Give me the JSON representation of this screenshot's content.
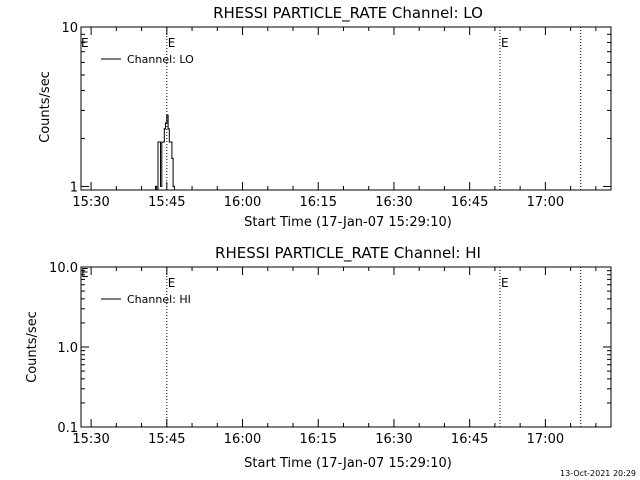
{
  "timestamp": "13-Oct-2021 20:29",
  "chart_data": [
    {
      "type": "line",
      "title": "RHESSI PARTICLE_RATE Channel: LO",
      "xlabel": "Start Time (17-Jan-07 15:29:10)",
      "ylabel": "Counts/sec",
      "x_unit": "time of day",
      "xlim": [
        "15:28",
        "17:13"
      ],
      "xticks": [
        "15:30",
        "15:45",
        "16:00",
        "16:15",
        "16:30",
        "16:45",
        "17:00"
      ],
      "ylim": [
        0.95,
        10
      ],
      "y_scale": "log",
      "yticks": [
        "1",
        "10"
      ],
      "grid": false,
      "legend_position": "top-left",
      "series": [
        {
          "name": "Channel: LO",
          "color": "#000000",
          "style": "histogram",
          "x": [
            "15:42:00",
            "15:42:45",
            "15:43:00",
            "15:43:15",
            "15:43:30",
            "15:43:45",
            "15:44:00",
            "15:44:15",
            "15:44:30",
            "15:44:45",
            "15:45:00",
            "15:45:15",
            "15:45:30",
            "15:45:45",
            "15:46:00",
            "15:46:15",
            "15:46:30",
            "15:46:45"
          ],
          "y": [
            0.95,
            1,
            0.95,
            1.9,
            1.9,
            1,
            1.9,
            1.9,
            2.3,
            2.5,
            2.8,
            2.3,
            1.9,
            1.9,
            1.5,
            1,
            0.95,
            0.95
          ]
        }
      ],
      "markers": [
        {
          "time": "15:45",
          "label": "E",
          "style": "dotted"
        },
        {
          "time": "16:51",
          "label": "E",
          "style": "dotted"
        },
        {
          "time": "17:07",
          "label": "",
          "style": "dotted"
        }
      ],
      "corner_label": "E"
    },
    {
      "type": "line",
      "title": "RHESSI PARTICLE_RATE Channel: HI",
      "xlabel": "Start Time (17-Jan-07 15:29:10)",
      "ylabel": "Counts/sec",
      "x_unit": "time of day",
      "xlim": [
        "15:28",
        "17:13"
      ],
      "xticks": [
        "15:30",
        "15:45",
        "16:00",
        "16:15",
        "16:30",
        "16:45",
        "17:00"
      ],
      "ylim": [
        0.1,
        10
      ],
      "y_scale": "log",
      "yticks": [
        "0.1",
        "1.0",
        "10.0"
      ],
      "grid": false,
      "legend_position": "top-left",
      "series": [
        {
          "name": "Channel: HI",
          "color": "#000000",
          "x": [],
          "y": []
        }
      ],
      "markers": [
        {
          "time": "15:45",
          "label": "E",
          "style": "dotted"
        },
        {
          "time": "16:51",
          "label": "E",
          "style": "dotted"
        },
        {
          "time": "17:07",
          "label": "",
          "style": "dotted"
        }
      ],
      "corner_label": "E"
    }
  ]
}
